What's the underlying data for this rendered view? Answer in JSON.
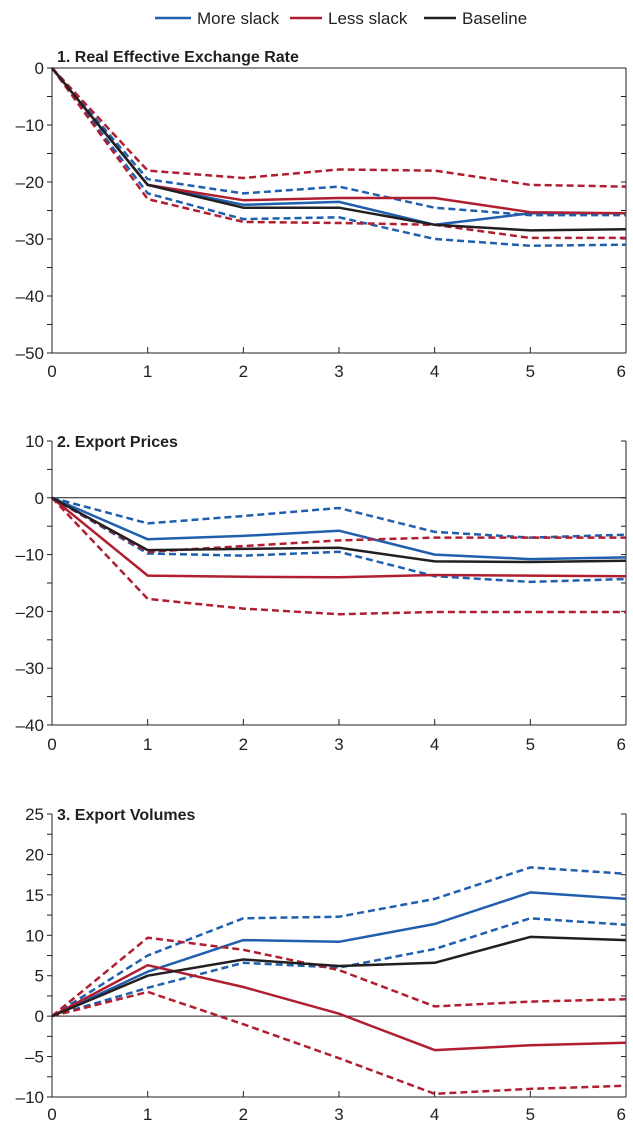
{
  "legend": [
    {
      "name": "More slack",
      "color": "#1f5fae"
    },
    {
      "name": "Less slack",
      "color": "#b01e2f"
    },
    {
      "name": "Baseline",
      "color": "#231f20"
    }
  ],
  "chart_data": [
    {
      "type": "line",
      "title": "1. Real Effective Exchange Rate",
      "x": [
        0,
        1,
        2,
        3,
        4,
        5,
        6
      ],
      "xticks": [
        "0",
        "1",
        "2",
        "3",
        "4",
        "5",
        "6"
      ],
      "ylim": [
        -50,
        0
      ],
      "yticks": [
        0,
        -10,
        -20,
        -30,
        -40,
        -50
      ],
      "ytick_labels": [
        "0",
        "–10",
        "–20",
        "–30",
        "–40",
        "–50"
      ],
      "series": [
        {
          "name": "More slack",
          "color": "#1f5fae",
          "style": "solid",
          "values": [
            0,
            -20.5,
            -24.0,
            -23.5,
            -27.5,
            -25.5,
            -25.5
          ]
        },
        {
          "name": "More slack",
          "color": "#1f5fae",
          "style": "dashed",
          "values": [
            0,
            -19.5,
            -22.0,
            -20.8,
            -24.5,
            -25.8,
            -25.8
          ]
        },
        {
          "name": "More slack",
          "color": "#1f5fae",
          "style": "dashed",
          "values": [
            0,
            -22.0,
            -26.5,
            -26.2,
            -30.0,
            -31.2,
            -31.0
          ]
        },
        {
          "name": "Less slack",
          "color": "#b01e2f",
          "style": "solid",
          "values": [
            0,
            -20.5,
            -23.2,
            -22.8,
            -22.8,
            -25.3,
            -25.5
          ]
        },
        {
          "name": "Less slack",
          "color": "#b01e2f",
          "style": "dashed",
          "values": [
            0,
            -18.0,
            -19.3,
            -17.8,
            -18.0,
            -20.5,
            -20.8
          ]
        },
        {
          "name": "Less slack",
          "color": "#b01e2f",
          "style": "dashed",
          "values": [
            0,
            -23.0,
            -27.0,
            -27.2,
            -27.5,
            -29.8,
            -29.8
          ]
        },
        {
          "name": "Baseline",
          "color": "#231f20",
          "style": "solid",
          "values": [
            0,
            -20.5,
            -24.5,
            -24.5,
            -27.5,
            -28.5,
            -28.3
          ]
        }
      ]
    },
    {
      "type": "line",
      "title": "2. Export Prices",
      "x": [
        0,
        1,
        2,
        3,
        4,
        5,
        6
      ],
      "xticks": [
        "0",
        "1",
        "2",
        "3",
        "4",
        "5",
        "6"
      ],
      "ylim": [
        -40,
        10
      ],
      "yticks": [
        10,
        0,
        -10,
        -20,
        -30,
        -40
      ],
      "ytick_labels": [
        "10",
        "0",
        "–10",
        "–20",
        "–30",
        "–40"
      ],
      "series": [
        {
          "name": "More slack",
          "color": "#1f5fae",
          "style": "solid",
          "values": [
            0,
            -7.3,
            -6.7,
            -5.8,
            -10.0,
            -10.8,
            -10.5
          ]
        },
        {
          "name": "More slack",
          "color": "#1f5fae",
          "style": "dashed",
          "values": [
            0,
            -4.5,
            -3.2,
            -1.8,
            -6.0,
            -7.0,
            -6.5
          ]
        },
        {
          "name": "More slack",
          "color": "#1f5fae",
          "style": "dashed",
          "values": [
            0,
            -9.8,
            -10.2,
            -9.5,
            -13.8,
            -14.8,
            -14.3
          ]
        },
        {
          "name": "Less slack",
          "color": "#b01e2f",
          "style": "solid",
          "values": [
            0,
            -13.7,
            -13.9,
            -14.0,
            -13.6,
            -13.7,
            -13.8
          ]
        },
        {
          "name": "Less slack",
          "color": "#b01e2f",
          "style": "dashed",
          "values": [
            0,
            -9.5,
            -8.5,
            -7.5,
            -7.0,
            -7.0,
            -7.0
          ]
        },
        {
          "name": "Less slack",
          "color": "#b01e2f",
          "style": "dashed",
          "values": [
            0,
            -17.8,
            -19.5,
            -20.5,
            -20.1,
            -20.1,
            -20.1
          ]
        },
        {
          "name": "Baseline",
          "color": "#231f20",
          "style": "solid",
          "values": [
            0,
            -9.2,
            -9.0,
            -8.8,
            -11.2,
            -11.3,
            -11.1
          ]
        }
      ]
    },
    {
      "type": "line",
      "title": "3. Export Volumes",
      "x": [
        0,
        1,
        2,
        3,
        4,
        5,
        6
      ],
      "xticks": [
        "0",
        "1",
        "2",
        "3",
        "4",
        "5",
        "6"
      ],
      "ylim": [
        -10,
        25
      ],
      "yticks": [
        25,
        20,
        15,
        10,
        5,
        0,
        -5,
        -10
      ],
      "ytick_labels": [
        "25",
        "20",
        "15",
        "10",
        "5",
        "0",
        "–5",
        "–10"
      ],
      "series": [
        {
          "name": "More slack",
          "color": "#1f5fae",
          "style": "solid",
          "values": [
            0,
            5.5,
            9.4,
            9.2,
            11.4,
            15.3,
            14.5
          ]
        },
        {
          "name": "More slack",
          "color": "#1f5fae",
          "style": "dashed",
          "values": [
            0,
            7.5,
            12.1,
            12.3,
            14.5,
            18.4,
            17.6
          ]
        },
        {
          "name": "More slack",
          "color": "#1f5fae",
          "style": "dashed",
          "values": [
            0,
            3.5,
            6.6,
            6.0,
            8.3,
            12.1,
            11.3
          ]
        },
        {
          "name": "Less slack",
          "color": "#b01e2f",
          "style": "solid",
          "values": [
            0,
            6.3,
            3.6,
            0.3,
            -4.2,
            -3.6,
            -3.3
          ]
        },
        {
          "name": "Less slack",
          "color": "#b01e2f",
          "style": "dashed",
          "values": [
            0,
            9.7,
            8.2,
            5.7,
            1.2,
            1.8,
            2.1
          ]
        },
        {
          "name": "Less slack",
          "color": "#b01e2f",
          "style": "dashed",
          "values": [
            0,
            3.0,
            -1.0,
            -5.2,
            -9.6,
            -9.0,
            -8.6
          ]
        },
        {
          "name": "Baseline",
          "color": "#231f20",
          "style": "solid",
          "values": [
            0,
            5.0,
            7.0,
            6.2,
            6.6,
            9.8,
            9.4
          ]
        }
      ]
    }
  ]
}
